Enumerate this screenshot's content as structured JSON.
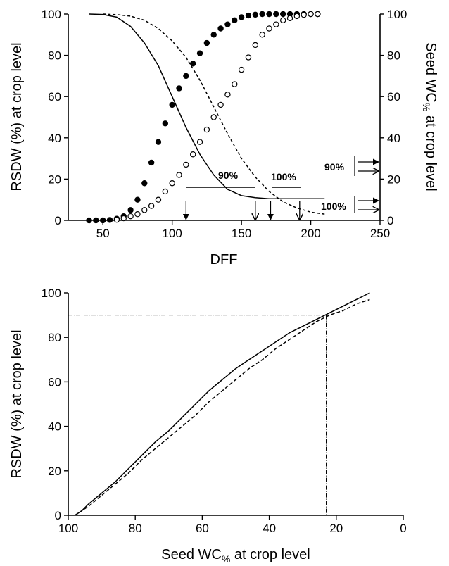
{
  "chart_data": [
    {
      "type": "scatter",
      "title": "",
      "xlabel": "DFF",
      "ylabel": "RSDW (%) at crop level",
      "y2label_main": "Seed WC",
      "y2label_sub": "%",
      "y2label_tail": " at crop level",
      "xlim": [
        25,
        250
      ],
      "ylim": [
        0,
        100
      ],
      "y2lim": [
        0,
        100
      ],
      "xticks": [
        "50",
        "100",
        "150",
        "200",
        "250"
      ],
      "yticks": [
        "0",
        "20",
        "40",
        "60",
        "80",
        "100"
      ],
      "y2ticks": [
        "0",
        "20",
        "40",
        "60",
        "80",
        "100"
      ],
      "series": [
        {
          "marker": "filled-circle",
          "axis": "left",
          "x": [
            40,
            45,
            50,
            55,
            60,
            65,
            70,
            75,
            80,
            85,
            90,
            95,
            100,
            105,
            110,
            115,
            120,
            125,
            130,
            135,
            140,
            145,
            150,
            155,
            160,
            165,
            170,
            175,
            180,
            185,
            190,
            195,
            200,
            205
          ],
          "y": [
            0,
            0,
            0,
            0.2,
            0.8,
            2,
            5,
            10,
            18,
            28,
            38,
            47,
            56,
            64,
            70,
            76,
            81,
            86,
            90,
            93,
            95,
            97,
            98.5,
            99.3,
            99.7,
            100,
            100,
            100,
            100,
            100,
            100,
            100,
            100,
            100
          ]
        },
        {
          "marker": "open-circle",
          "axis": "left",
          "x": [
            60,
            65,
            70,
            75,
            80,
            85,
            90,
            95,
            100,
            105,
            110,
            115,
            120,
            125,
            130,
            135,
            140,
            145,
            150,
            155,
            160,
            165,
            170,
            175,
            180,
            185,
            190,
            195,
            200,
            205
          ],
          "y": [
            0.3,
            1,
            2,
            3,
            5,
            7,
            10,
            14,
            18,
            22,
            27,
            32,
            38,
            44,
            50,
            56,
            61,
            66,
            73,
            79,
            85,
            90,
            93,
            95,
            97,
            98,
            99,
            99.6,
            100,
            100
          ]
        },
        {
          "style": "solid",
          "axis": "right",
          "x": [
            40,
            50,
            60,
            70,
            80,
            90,
            100,
            110,
            120,
            130,
            140,
            150,
            160,
            170,
            180,
            190,
            200,
            210
          ],
          "y": [
            100,
            99.8,
            98.5,
            94,
            86,
            75,
            60,
            45,
            32,
            22,
            15,
            12,
            11,
            10.5,
            10.5,
            10.5,
            10.5,
            10.5
          ]
        },
        {
          "style": "dashed",
          "axis": "right",
          "x": [
            50,
            60,
            70,
            80,
            90,
            100,
            110,
            120,
            130,
            140,
            150,
            160,
            170,
            180,
            190,
            200,
            210
          ],
          "y": [
            100,
            99.7,
            99,
            97,
            93,
            87,
            79,
            68,
            55,
            42,
            30,
            21,
            14,
            9,
            6,
            4,
            3
          ]
        }
      ],
      "annotations": {
        "label_90_center": "90%",
        "label_100_center": "100%",
        "label_90_right": "90%",
        "label_100_right": "100%",
        "bar_90_x": [
          110,
          160
        ],
        "bar_100_x": [
          172,
          193
        ],
        "bar_90_y": 16,
        "bar_100_y": 16,
        "filled_arrows_x": [
          110,
          171
        ],
        "open_arrows_x": [
          160,
          192
        ]
      }
    },
    {
      "type": "line",
      "title": "",
      "xlabel_main": "Seed WC",
      "xlabel_sub": "%",
      "xlabel_tail": " at crop level",
      "ylabel": "RSDW (%) at crop level",
      "xlim": [
        100,
        0
      ],
      "ylim": [
        0,
        100
      ],
      "xticks": [
        "100",
        "80",
        "60",
        "40",
        "20",
        "0"
      ],
      "yticks": [
        "0",
        "20",
        "40",
        "60",
        "80",
        "100"
      ],
      "series": [
        {
          "style": "solid",
          "x": [
            98,
            96,
            94,
            90,
            86,
            82,
            78,
            74,
            70,
            66,
            62,
            58,
            54,
            50,
            46,
            42,
            38,
            34,
            30,
            26,
            22,
            18,
            14,
            10
          ],
          "y": [
            0,
            2,
            5,
            10,
            15,
            21,
            27,
            33,
            38,
            44,
            50,
            56,
            61,
            66,
            70,
            74,
            78,
            82,
            85,
            88,
            91,
            94,
            97,
            100
          ]
        },
        {
          "style": "dashed",
          "x": [
            98,
            96,
            94,
            90,
            86,
            82,
            78,
            74,
            70,
            66,
            62,
            58,
            54,
            50,
            46,
            42,
            38,
            34,
            30,
            26,
            22,
            18,
            14,
            10
          ],
          "y": [
            0,
            2,
            4,
            9,
            14,
            19,
            25,
            30,
            35,
            40,
            45,
            51,
            56,
            61,
            66,
            70,
            75,
            79,
            83,
            87,
            90,
            92,
            95,
            97
          ]
        }
      ],
      "reference_lines": {
        "y": 90,
        "x": 23
      }
    }
  ]
}
